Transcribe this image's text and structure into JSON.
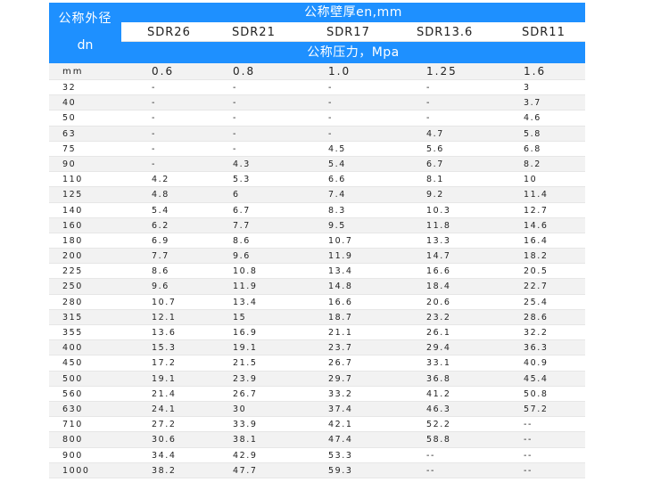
{
  "header": {
    "dn_label_line1": "公称外径",
    "dn_label_line2": "dn",
    "wall_title": "公称壁厚en,mm",
    "sdr": [
      "SDR26",
      "SDR21",
      "SDR17",
      "SDR13.6",
      "SDR11"
    ],
    "pressure_title": "公称压力，Mpa"
  },
  "unit_row": {
    "unit": "mm",
    "pressures": [
      "0.6",
      "0.8",
      "1.0",
      "1.25",
      "1.6"
    ]
  },
  "rows": [
    [
      "32",
      "-",
      "-",
      "-",
      "-",
      "3"
    ],
    [
      "40",
      "-",
      "-",
      "-",
      "-",
      "3.7"
    ],
    [
      "50",
      "-",
      "-",
      "-",
      "-",
      "4.6"
    ],
    [
      "63",
      "-",
      "-",
      "-",
      "4.7",
      "5.8"
    ],
    [
      "75",
      "-",
      "-",
      "4.5",
      "5.6",
      "6.8"
    ],
    [
      "90",
      "-",
      "4.3",
      "5.4",
      "6.7",
      "8.2"
    ],
    [
      "110",
      "4.2",
      "5.3",
      "6.6",
      "8.1",
      "10"
    ],
    [
      "125",
      "4.8",
      "6",
      "7.4",
      "9.2",
      "11.4"
    ],
    [
      "140",
      "5.4",
      "6.7",
      "8.3",
      "10.3",
      "12.7"
    ],
    [
      "160",
      "6.2",
      "7.7",
      "9.5",
      "11.8",
      "14.6"
    ],
    [
      "180",
      "6.9",
      "8.6",
      "10.7",
      "13.3",
      "16.4"
    ],
    [
      "200",
      "7.7",
      "9.6",
      "11.9",
      "14.7",
      "18.2"
    ],
    [
      "225",
      "8.6",
      "10.8",
      "13.4",
      "16.6",
      "20.5"
    ],
    [
      "250",
      "9.6",
      "11.9",
      "14.8",
      "18.4",
      "22.7"
    ],
    [
      "280",
      "10.7",
      "13.4",
      "16.6",
      "20.6",
      "25.4"
    ],
    [
      "315",
      "12.1",
      "15",
      "18.7",
      "23.2",
      "28.6"
    ],
    [
      "355",
      "13.6",
      "16.9",
      "21.1",
      "26.1",
      "32.2"
    ],
    [
      "400",
      "15.3",
      "19.1",
      "23.7",
      "29.4",
      "36.3"
    ],
    [
      "450",
      "17.2",
      "21.5",
      "26.7",
      "33.1",
      "40.9"
    ],
    [
      "500",
      "19.1",
      "23.9",
      "29.7",
      "36.8",
      "45.4"
    ],
    [
      "560",
      "21.4",
      "26.7",
      "33.2",
      "41.2",
      "50.8"
    ],
    [
      "630",
      "24.1",
      "30",
      "37.4",
      "46.3",
      "57.2"
    ],
    [
      "710",
      "27.2",
      "33.9",
      "42.1",
      "52.2",
      "--"
    ],
    [
      "800",
      "30.6",
      "38.1",
      "47.4",
      "58.8",
      "--"
    ],
    [
      "900",
      "34.4",
      "42.9",
      "53.3",
      "--",
      "--"
    ],
    [
      "1000",
      "38.2",
      "47.7",
      "59.3",
      "--",
      "--"
    ]
  ],
  "colors": {
    "header_blue": "#1e90ff",
    "stripe": "#f2f2f2"
  }
}
